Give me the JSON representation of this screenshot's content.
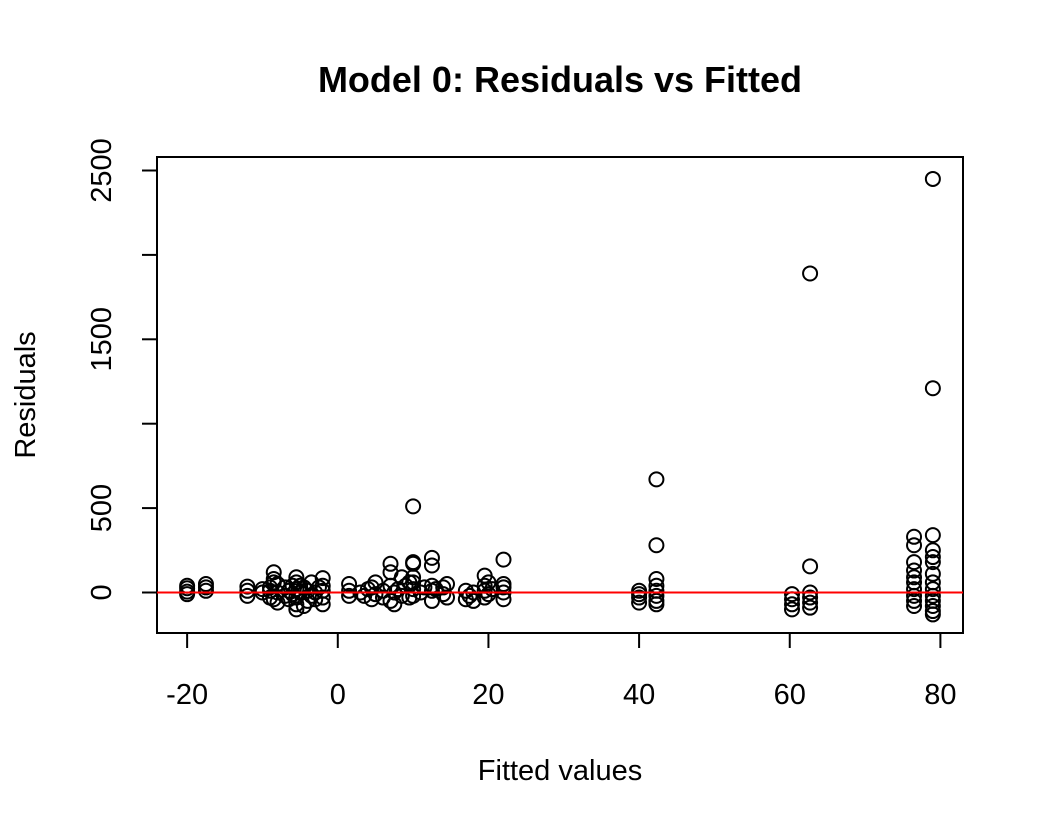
{
  "chart_data": {
    "type": "scatter",
    "title": "Model 0: Residuals vs Fitted",
    "xlabel": "Fitted values",
    "ylabel": "Residuals",
    "xlim": [
      -24,
      83
    ],
    "ylim": [
      -240,
      2580
    ],
    "x_ticks": [
      "-20",
      "0",
      "20",
      "40",
      "60",
      "80"
    ],
    "y_ticks": [
      "0",
      "500",
      "1500",
      "2500"
    ],
    "y_minor_ticks": [
      1000,
      2000
    ],
    "reference_line": {
      "y": 0,
      "color": "#ff0000"
    },
    "grid": false,
    "points": [
      {
        "x": -20,
        "y": 5
      },
      {
        "x": -20,
        "y": 25
      },
      {
        "x": -20,
        "y": -10
      },
      {
        "x": -20,
        "y": 40
      },
      {
        "x": -17.5,
        "y": 10
      },
      {
        "x": -17.5,
        "y": 30
      },
      {
        "x": -17.5,
        "y": 50
      },
      {
        "x": -12,
        "y": -20
      },
      {
        "x": -12,
        "y": 10
      },
      {
        "x": -12,
        "y": 35
      },
      {
        "x": -10,
        "y": 0
      },
      {
        "x": -10,
        "y": 20
      },
      {
        "x": -9,
        "y": -30
      },
      {
        "x": -9,
        "y": 10
      },
      {
        "x": -9,
        "y": 30
      },
      {
        "x": -8.5,
        "y": 120
      },
      {
        "x": -8.5,
        "y": 80
      },
      {
        "x": -8.5,
        "y": 60
      },
      {
        "x": -8.5,
        "y": -40
      },
      {
        "x": -8,
        "y": 50
      },
      {
        "x": -8,
        "y": 0
      },
      {
        "x": -8,
        "y": -60
      },
      {
        "x": -7,
        "y": -20
      },
      {
        "x": -7,
        "y": 30
      },
      {
        "x": -6.5,
        "y": 10
      },
      {
        "x": -6.5,
        "y": -40
      },
      {
        "x": -6,
        "y": 40
      },
      {
        "x": -6,
        "y": -10
      },
      {
        "x": -5.5,
        "y": -100
      },
      {
        "x": -5.5,
        "y": -70
      },
      {
        "x": -5.5,
        "y": -30
      },
      {
        "x": -5.5,
        "y": 20
      },
      {
        "x": -5.5,
        "y": 60
      },
      {
        "x": -5.5,
        "y": 90
      },
      {
        "x": -5,
        "y": 0
      },
      {
        "x": -5,
        "y": 40
      },
      {
        "x": -4.5,
        "y": -80
      },
      {
        "x": -4.5,
        "y": 30
      },
      {
        "x": -4,
        "y": -50
      },
      {
        "x": -4,
        "y": 10
      },
      {
        "x": -3.5,
        "y": 60
      },
      {
        "x": -3.5,
        "y": -20
      },
      {
        "x": -3,
        "y": 0
      },
      {
        "x": -3,
        "y": -40
      },
      {
        "x": -2.5,
        "y": 30
      },
      {
        "x": -2,
        "y": -70
      },
      {
        "x": -2,
        "y": -30
      },
      {
        "x": -2,
        "y": 10
      },
      {
        "x": -2,
        "y": 40
      },
      {
        "x": -2,
        "y": 85
      },
      {
        "x": 1.5,
        "y": -20
      },
      {
        "x": 1.5,
        "y": 10
      },
      {
        "x": 1.5,
        "y": 50
      },
      {
        "x": 3,
        "y": 0
      },
      {
        "x": 3.5,
        "y": -20
      },
      {
        "x": 4,
        "y": 20
      },
      {
        "x": 4.5,
        "y": -40
      },
      {
        "x": 4.5,
        "y": 30
      },
      {
        "x": 5,
        "y": 60
      },
      {
        "x": 5,
        "y": -10
      },
      {
        "x": 6,
        "y": -30
      },
      {
        "x": 6,
        "y": 10
      },
      {
        "x": 7,
        "y": 40
      },
      {
        "x": 7,
        "y": 120
      },
      {
        "x": 7,
        "y": 170
      },
      {
        "x": 7,
        "y": -50
      },
      {
        "x": 7.5,
        "y": 0
      },
      {
        "x": 7.5,
        "y": -70
      },
      {
        "x": 8,
        "y": 20
      },
      {
        "x": 8.5,
        "y": -20
      },
      {
        "x": 8.5,
        "y": 90
      },
      {
        "x": 9,
        "y": 40
      },
      {
        "x": 9.5,
        "y": -30
      },
      {
        "x": 9.5,
        "y": 60
      },
      {
        "x": 10,
        "y": 510
      },
      {
        "x": 10,
        "y": 180
      },
      {
        "x": 10,
        "y": 170
      },
      {
        "x": 10,
        "y": 90
      },
      {
        "x": 10,
        "y": 60
      },
      {
        "x": 10,
        "y": 20
      },
      {
        "x": 10,
        "y": -20
      },
      {
        "x": 11,
        "y": 0
      },
      {
        "x": 11.5,
        "y": 30
      },
      {
        "x": 12.5,
        "y": 205
      },
      {
        "x": 12.5,
        "y": 160
      },
      {
        "x": 12.5,
        "y": 40
      },
      {
        "x": 12.5,
        "y": 10
      },
      {
        "x": 12.5,
        "y": -50
      },
      {
        "x": 13,
        "y": 20
      },
      {
        "x": 14,
        "y": -10
      },
      {
        "x": 14,
        "y": 30
      },
      {
        "x": 14.5,
        "y": 50
      },
      {
        "x": 14.5,
        "y": -30
      },
      {
        "x": 17,
        "y": 10
      },
      {
        "x": 17,
        "y": -40
      },
      {
        "x": 17.5,
        "y": -20
      },
      {
        "x": 18,
        "y": 0
      },
      {
        "x": 18,
        "y": -50
      },
      {
        "x": 19.5,
        "y": 100
      },
      {
        "x": 19.5,
        "y": 40
      },
      {
        "x": 19.5,
        "y": 10
      },
      {
        "x": 19.5,
        "y": -30
      },
      {
        "x": 20,
        "y": 60
      },
      {
        "x": 20,
        "y": -10
      },
      {
        "x": 20.5,
        "y": 20
      },
      {
        "x": 22,
        "y": 195
      },
      {
        "x": 22,
        "y": 50
      },
      {
        "x": 22,
        "y": 30
      },
      {
        "x": 22,
        "y": 0
      },
      {
        "x": 22,
        "y": -40
      },
      {
        "x": 40,
        "y": 10
      },
      {
        "x": 40,
        "y": -10
      },
      {
        "x": 40,
        "y": -30
      },
      {
        "x": 40,
        "y": -60
      },
      {
        "x": 42.3,
        "y": 670
      },
      {
        "x": 42.3,
        "y": 280
      },
      {
        "x": 42.3,
        "y": 80
      },
      {
        "x": 42.3,
        "y": 40
      },
      {
        "x": 42.3,
        "y": 10
      },
      {
        "x": 42.3,
        "y": -20
      },
      {
        "x": 42.3,
        "y": -50
      },
      {
        "x": 42.3,
        "y": -70
      },
      {
        "x": 60.3,
        "y": -10
      },
      {
        "x": 60.3,
        "y": -40
      },
      {
        "x": 60.3,
        "y": -70
      },
      {
        "x": 60.3,
        "y": -100
      },
      {
        "x": 62.7,
        "y": 1890
      },
      {
        "x": 62.7,
        "y": 155
      },
      {
        "x": 62.7,
        "y": 0
      },
      {
        "x": 62.7,
        "y": -30
      },
      {
        "x": 62.7,
        "y": -60
      },
      {
        "x": 62.7,
        "y": -90
      },
      {
        "x": 76.5,
        "y": 330
      },
      {
        "x": 76.5,
        "y": 280
      },
      {
        "x": 76.5,
        "y": 180
      },
      {
        "x": 76.5,
        "y": 130
      },
      {
        "x": 76.5,
        "y": 90
      },
      {
        "x": 76.5,
        "y": 60
      },
      {
        "x": 76.5,
        "y": 20
      },
      {
        "x": 76.5,
        "y": -20
      },
      {
        "x": 76.5,
        "y": -50
      },
      {
        "x": 76.5,
        "y": -80
      },
      {
        "x": 79,
        "y": 2450
      },
      {
        "x": 79,
        "y": 1210
      },
      {
        "x": 79,
        "y": 340
      },
      {
        "x": 79,
        "y": 250
      },
      {
        "x": 79,
        "y": 210
      },
      {
        "x": 79,
        "y": 180
      },
      {
        "x": 79,
        "y": 110
      },
      {
        "x": 79,
        "y": 60
      },
      {
        "x": 79,
        "y": 20
      },
      {
        "x": 79,
        "y": -20
      },
      {
        "x": 79,
        "y": -50
      },
      {
        "x": 79,
        "y": -80
      },
      {
        "x": 79,
        "y": -110
      },
      {
        "x": 79,
        "y": -130
      }
    ]
  }
}
